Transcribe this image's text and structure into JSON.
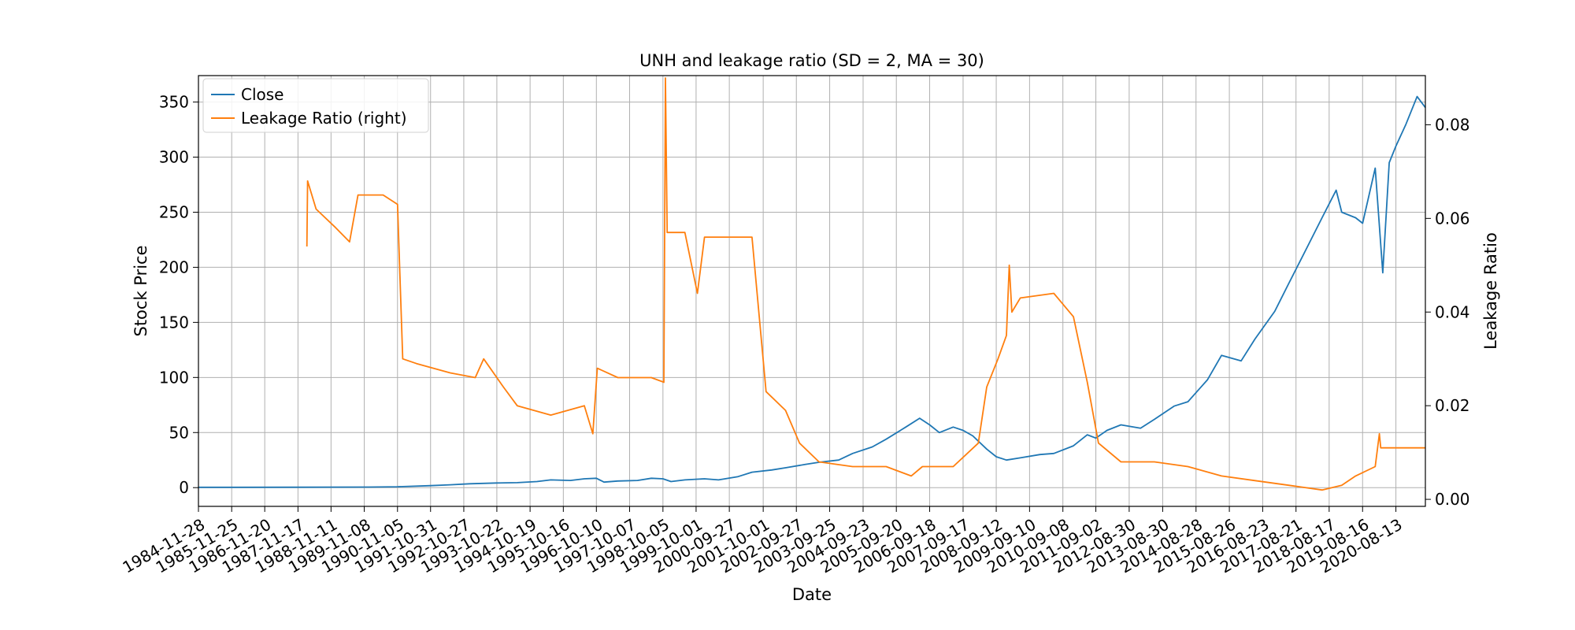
{
  "chart_data": {
    "type": "line",
    "title": "UNH and leakage ratio (SD = 2, MA = 30)",
    "xlabel": "Date",
    "ylabel": "Stock Price",
    "ylabel_right": "Leakage Ratio",
    "x_range": [
      "1984-11-28",
      "2021-06-30"
    ],
    "ylim": [
      -17,
      374
    ],
    "ylim_right": [
      -0.0015,
      0.0905
    ],
    "grid": true,
    "legend_position": "top-left",
    "x_tick_labels": [
      "1984-11-28",
      "1985-11-25",
      "1986-11-20",
      "1987-11-17",
      "1988-11-11",
      "1989-11-08",
      "1990-11-05",
      "1991-10-31",
      "1992-10-27",
      "1993-10-22",
      "1994-10-19",
      "1995-10-16",
      "1996-10-10",
      "1997-10-07",
      "1998-10-05",
      "1999-10-01",
      "2000-09-27",
      "2001-10-01",
      "2002-09-27",
      "2003-09-25",
      "2004-09-23",
      "2005-09-20",
      "2006-09-18",
      "2007-09-17",
      "2008-09-12",
      "2009-09-10",
      "2010-09-08",
      "2011-09-02",
      "2012-08-30",
      "2013-08-30",
      "2014-08-28",
      "2015-08-26",
      "2016-08-23",
      "2017-08-21",
      "2018-08-17",
      "2019-08-16",
      "2020-08-13"
    ],
    "y_ticks_left": [
      0,
      50,
      100,
      150,
      200,
      250,
      300,
      350
    ],
    "y_ticks_right": [
      "0.00",
      "0.02",
      "0.04",
      "0.06",
      "0.08"
    ],
    "series": [
      {
        "name": "Close",
        "axis": "left",
        "color": "#1f77b4",
        "points": [
          [
            "1984-11-28",
            0.3
          ],
          [
            "1986-01-01",
            0.3
          ],
          [
            "1988-01-01",
            0.4
          ],
          [
            "1990-01-01",
            0.5
          ],
          [
            "1990-11-05",
            0.8
          ],
          [
            "1991-10-31",
            1.8
          ],
          [
            "1992-06-01",
            2.6
          ],
          [
            "1993-01-01",
            3.5
          ],
          [
            "1993-10-22",
            4.2
          ],
          [
            "1994-06-01",
            4.5
          ],
          [
            "1995-01-01",
            5.5
          ],
          [
            "1995-06-01",
            7
          ],
          [
            "1996-01-01",
            6.5
          ],
          [
            "1996-06-01",
            8
          ],
          [
            "1996-10-10",
            8.5
          ],
          [
            "1997-01-01",
            5
          ],
          [
            "1997-06-01",
            6
          ],
          [
            "1998-01-01",
            6.5
          ],
          [
            "1998-06-01",
            8.5
          ],
          [
            "1998-10-05",
            8
          ],
          [
            "1999-01-01",
            5.5
          ],
          [
            "1999-06-01",
            7
          ],
          [
            "2000-01-01",
            8
          ],
          [
            "2000-06-01",
            7
          ],
          [
            "2001-01-01",
            10
          ],
          [
            "2001-06-01",
            14
          ],
          [
            "2002-01-01",
            16
          ],
          [
            "2002-06-01",
            18
          ],
          [
            "2003-01-01",
            21
          ],
          [
            "2003-06-01",
            23
          ],
          [
            "2004-01-01",
            25
          ],
          [
            "2004-06-01",
            31
          ],
          [
            "2005-01-01",
            37
          ],
          [
            "2005-06-01",
            44
          ],
          [
            "2006-01-01",
            55
          ],
          [
            "2006-06-01",
            63
          ],
          [
            "2006-09-18",
            57
          ],
          [
            "2007-01-01",
            50
          ],
          [
            "2007-06-01",
            55
          ],
          [
            "2007-09-17",
            52
          ],
          [
            "2008-01-01",
            47
          ],
          [
            "2008-06-01",
            35
          ],
          [
            "2008-09-12",
            28
          ],
          [
            "2009-01-01",
            25
          ],
          [
            "2009-06-01",
            27
          ],
          [
            "2010-01-01",
            30
          ],
          [
            "2010-06-01",
            31
          ],
          [
            "2011-01-01",
            38
          ],
          [
            "2011-06-01",
            48
          ],
          [
            "2011-09-02",
            45
          ],
          [
            "2012-01-01",
            52
          ],
          [
            "2012-06-01",
            57
          ],
          [
            "2013-01-01",
            54
          ],
          [
            "2013-06-01",
            62
          ],
          [
            "2014-01-01",
            74
          ],
          [
            "2014-06-01",
            78
          ],
          [
            "2015-01-01",
            98
          ],
          [
            "2015-06-01",
            120
          ],
          [
            "2016-01-01",
            115
          ],
          [
            "2016-06-01",
            135
          ],
          [
            "2017-01-01",
            160
          ],
          [
            "2017-06-01",
            185
          ],
          [
            "2018-01-01",
            220
          ],
          [
            "2018-06-01",
            245
          ],
          [
            "2018-11-01",
            270
          ],
          [
            "2019-01-01",
            250
          ],
          [
            "2019-06-01",
            245
          ],
          [
            "2019-08-16",
            240
          ],
          [
            "2020-01-01",
            290
          ],
          [
            "2020-03-23",
            195
          ],
          [
            "2020-06-01",
            295
          ],
          [
            "2020-08-13",
            310
          ],
          [
            "2020-12-01",
            330
          ],
          [
            "2021-04-01",
            355
          ],
          [
            "2021-06-30",
            345
          ]
        ]
      },
      {
        "name": "Leakage Ratio (right)",
        "axis": "right",
        "color": "#ff7f0e",
        "points": [
          [
            "1988-02-22",
            0.054
          ],
          [
            "1988-03-01",
            0.068
          ],
          [
            "1988-06-01",
            0.062
          ],
          [
            "1989-01-01",
            0.058
          ],
          [
            "1989-06-01",
            0.055
          ],
          [
            "1989-09-01",
            0.065
          ],
          [
            "1990-06-01",
            0.065
          ],
          [
            "1990-11-05",
            0.063
          ],
          [
            "1991-01-01",
            0.03
          ],
          [
            "1991-06-01",
            0.029
          ],
          [
            "1992-06-01",
            0.027
          ],
          [
            "1993-03-01",
            0.026
          ],
          [
            "1993-06-01",
            0.03
          ],
          [
            "1994-01-01",
            0.024
          ],
          [
            "1994-06-01",
            0.02
          ],
          [
            "1995-06-01",
            0.018
          ],
          [
            "1996-06-01",
            0.02
          ],
          [
            "1996-09-01",
            0.014
          ],
          [
            "1996-10-20",
            0.028
          ],
          [
            "1997-06-01",
            0.026
          ],
          [
            "1998-06-01",
            0.026
          ],
          [
            "1998-10-15",
            0.025
          ],
          [
            "1998-11-01",
            0.09
          ],
          [
            "1998-11-20",
            0.057
          ],
          [
            "1999-06-01",
            0.057
          ],
          [
            "1999-10-15",
            0.044
          ],
          [
            "2000-01-01",
            0.056
          ],
          [
            "2001-06-01",
            0.056
          ],
          [
            "2001-11-01",
            0.023
          ],
          [
            "2002-06-01",
            0.019
          ],
          [
            "2002-11-01",
            0.012
          ],
          [
            "2003-06-01",
            0.008
          ],
          [
            "2004-06-01",
            0.007
          ],
          [
            "2005-06-01",
            0.007
          ],
          [
            "2006-03-01",
            0.005
          ],
          [
            "2006-07-01",
            0.007
          ],
          [
            "2007-06-01",
            0.007
          ],
          [
            "2008-03-01",
            0.012
          ],
          [
            "2008-06-01",
            0.024
          ],
          [
            "2008-10-01",
            0.03
          ],
          [
            "2009-01-01",
            0.035
          ],
          [
            "2009-02-01",
            0.05
          ],
          [
            "2009-03-01",
            0.04
          ],
          [
            "2009-06-01",
            0.043
          ],
          [
            "2010-06-01",
            0.044
          ],
          [
            "2011-01-01",
            0.039
          ],
          [
            "2011-06-01",
            0.025
          ],
          [
            "2011-10-01",
            0.012
          ],
          [
            "2012-06-01",
            0.008
          ],
          [
            "2013-06-01",
            0.008
          ],
          [
            "2014-06-01",
            0.007
          ],
          [
            "2015-06-01",
            0.005
          ],
          [
            "2016-06-01",
            0.004
          ],
          [
            "2017-06-01",
            0.003
          ],
          [
            "2018-06-01",
            0.002
          ],
          [
            "2019-01-01",
            0.003
          ],
          [
            "2019-06-01",
            0.005
          ],
          [
            "2020-01-01",
            0.007
          ],
          [
            "2020-02-15",
            0.014
          ],
          [
            "2020-03-01",
            0.011
          ],
          [
            "2020-08-13",
            0.011
          ],
          [
            "2021-06-30",
            0.011
          ]
        ]
      }
    ]
  }
}
